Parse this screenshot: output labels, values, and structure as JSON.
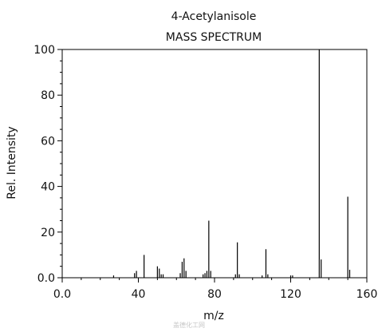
{
  "watermark": "盖德化工网",
  "chart_data": {
    "type": "bar",
    "title": "4-Acetylanisole",
    "subtitle": "MASS SPECTRUM",
    "xlabel": "m/z",
    "ylabel": "Rel. Intensity",
    "xlim": [
      0,
      160
    ],
    "ylim": [
      0,
      100
    ],
    "xticks": [
      0,
      40,
      80,
      120,
      160
    ],
    "xtick_labels": [
      "0.0",
      "40",
      "80",
      "120",
      "160"
    ],
    "yticks": [
      0,
      20,
      40,
      60,
      80,
      100
    ],
    "ytick_labels": [
      "0.0",
      "20",
      "40",
      "60",
      "80",
      "100"
    ],
    "grid": false,
    "peaks": [
      {
        "mz": 27,
        "intensity": 1
      },
      {
        "mz": 38,
        "intensity": 2
      },
      {
        "mz": 39,
        "intensity": 3
      },
      {
        "mz": 43,
        "intensity": 10
      },
      {
        "mz": 50,
        "intensity": 5
      },
      {
        "mz": 51,
        "intensity": 4
      },
      {
        "mz": 52,
        "intensity": 1.5
      },
      {
        "mz": 53,
        "intensity": 1.5
      },
      {
        "mz": 62,
        "intensity": 2
      },
      {
        "mz": 63,
        "intensity": 7
      },
      {
        "mz": 64,
        "intensity": 8.5
      },
      {
        "mz": 65,
        "intensity": 3
      },
      {
        "mz": 74,
        "intensity": 1.5
      },
      {
        "mz": 75,
        "intensity": 2
      },
      {
        "mz": 76,
        "intensity": 3
      },
      {
        "mz": 77,
        "intensity": 25
      },
      {
        "mz": 78,
        "intensity": 3
      },
      {
        "mz": 91,
        "intensity": 1.5
      },
      {
        "mz": 92,
        "intensity": 15.5
      },
      {
        "mz": 93,
        "intensity": 1.5
      },
      {
        "mz": 105,
        "intensity": 1
      },
      {
        "mz": 107,
        "intensity": 12.5
      },
      {
        "mz": 108,
        "intensity": 1.5
      },
      {
        "mz": 120,
        "intensity": 1
      },
      {
        "mz": 121,
        "intensity": 1
      },
      {
        "mz": 135,
        "intensity": 100
      },
      {
        "mz": 136,
        "intensity": 8
      },
      {
        "mz": 150,
        "intensity": 35.5
      },
      {
        "mz": 151,
        "intensity": 3.5
      }
    ]
  }
}
